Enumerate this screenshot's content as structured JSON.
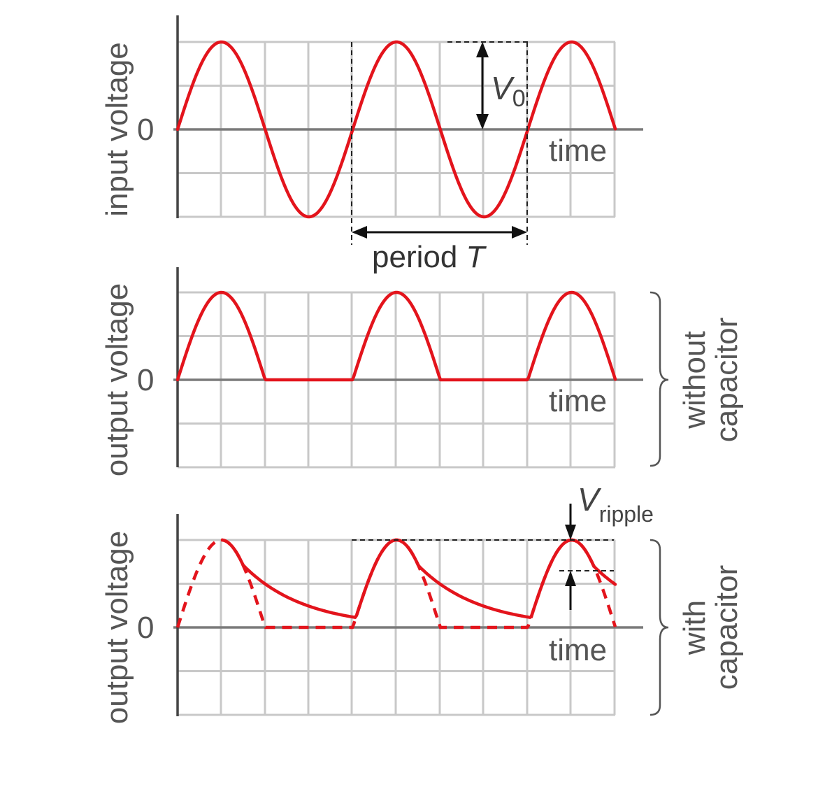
{
  "panels": {
    "top": {
      "y_label": "input voltage",
      "zero_label": "0",
      "x_label": "time"
    },
    "middle": {
      "y_label": "output voltage",
      "zero_label": "0",
      "x_label": "time"
    },
    "bottom": {
      "y_label": "output voltage",
      "zero_label": "0",
      "x_label": "time"
    }
  },
  "annotations": {
    "amplitude_symbol": "V",
    "amplitude_subscript": "0",
    "period_text": "period ",
    "period_symbol": "T",
    "ripple_symbol": "V",
    "ripple_subscript": "ripple"
  },
  "braces": {
    "without": {
      "line1": "without",
      "line2": "capacitor"
    },
    "with": {
      "line1": "with",
      "line2": "capacitor"
    }
  },
  "colors": {
    "signal": "#e3141c",
    "grid": "#c8c8c8",
    "axis": "#7a7a7a",
    "text": "#555555"
  },
  "signal": {
    "input": "sine wave, 2.5 periods, amplitude V0",
    "output_without_capacitor": "half-wave rectified sine",
    "output_with_capacitor": "half-wave rectified with exponential decay between peaks"
  }
}
